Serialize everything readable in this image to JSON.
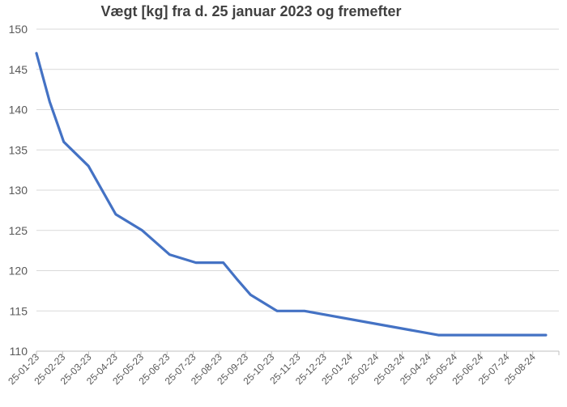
{
  "chart_data": {
    "type": "line",
    "title": "Vægt [kg] fra d. 25 januar 2023 og fremefter",
    "xlabel": "",
    "ylabel": "",
    "ylim": [
      110,
      150
    ],
    "yticks": [
      110,
      115,
      120,
      125,
      130,
      135,
      140,
      145,
      150
    ],
    "categories": [
      "25-01-23",
      "25-02-23",
      "25-03-23",
      "25-04-23",
      "25-05-23",
      "25-06-23",
      "25-07-23",
      "25-08-23",
      "25-09-23",
      "25-10-23",
      "25-11-23",
      "25-12-23",
      "25-01-24",
      "25-02-24",
      "25-03-24",
      "25-04-24",
      "25-05-24",
      "25-06-24",
      "25-07-24",
      "25-08-24"
    ],
    "grid": true,
    "legend": "none",
    "series": [
      {
        "color": "#4472c4",
        "points": [
          {
            "x": "25-01-23",
            "y": 147
          },
          {
            "x": "09-02-23",
            "y": 141
          },
          {
            "x": "25-02-23",
            "y": 136
          },
          {
            "x": "25-03-23",
            "y": 133
          },
          {
            "x": "25-04-23",
            "y": 127
          },
          {
            "x": "25-05-23",
            "y": 125
          },
          {
            "x": "25-06-23",
            "y": 122
          },
          {
            "x": "25-07-23",
            "y": 121
          },
          {
            "x": "25-08-23",
            "y": 121
          },
          {
            "x": "09-09-23",
            "y": 119
          },
          {
            "x": "25-09-23",
            "y": 117
          },
          {
            "x": "25-10-23",
            "y": 115
          },
          {
            "x": "25-11-23",
            "y": 115
          },
          {
            "x": "25-04-24",
            "y": 112
          },
          {
            "x": "25-08-24",
            "y": 112
          }
        ]
      }
    ]
  }
}
